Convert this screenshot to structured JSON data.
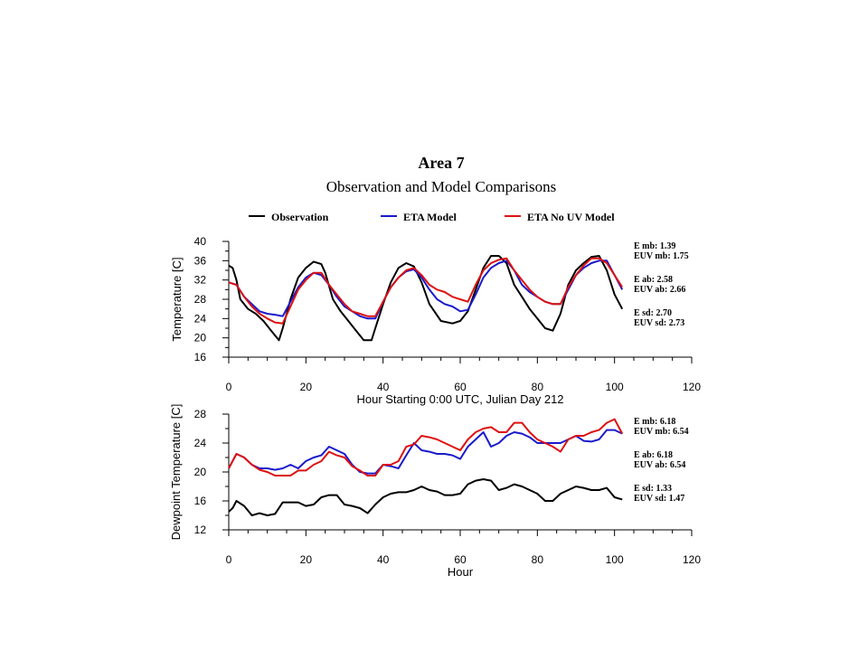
{
  "title": "Area 7",
  "subtitle": "Observation and Model Comparisons",
  "legend": [
    {
      "label": "Observation",
      "color": "#000000"
    },
    {
      "label": "ETA Model",
      "color": "#1a1acc"
    },
    {
      "label": "ETA No UV Model",
      "color": "#dd1111"
    }
  ],
  "chart_data": [
    {
      "type": "line",
      "title": "",
      "xlabel": "Hour Starting 0:00 UTC, Julian Day 212",
      "ylabel": "Temperature [C]",
      "xlim": [
        0,
        120
      ],
      "ylim": [
        16,
        40
      ],
      "xticks": [
        "0",
        "20",
        "40",
        "60",
        "80",
        "100",
        "120"
      ],
      "yticks": [
        "16",
        "20",
        "24",
        "28",
        "32",
        "36",
        "40"
      ],
      "series": [
        {
          "name": "Observation",
          "color": "#000000",
          "x": [
            0,
            1,
            2,
            3,
            5,
            7,
            9,
            11,
            13,
            14,
            16,
            18,
            20,
            22,
            24,
            25,
            27,
            29,
            31,
            33,
            35,
            37,
            38,
            40,
            42,
            44,
            46,
            48,
            50,
            52,
            55,
            58,
            60,
            62,
            64,
            66,
            68,
            70,
            72,
            74,
            76,
            78,
            80,
            82,
            84,
            86,
            88,
            90,
            92,
            94,
            96,
            98,
            100,
            102
          ],
          "y": [
            35,
            34.5,
            32,
            28,
            26,
            25,
            23.5,
            21.5,
            19.5,
            22,
            28,
            32.5,
            34.5,
            35.8,
            35.3,
            33.5,
            28,
            25.5,
            23.5,
            21.5,
            19.5,
            19.5,
            22,
            27,
            31.5,
            34.5,
            35.5,
            34.8,
            31.5,
            27,
            23.5,
            23,
            23.5,
            25.5,
            30,
            34.5,
            37,
            37,
            35.5,
            31,
            28.5,
            26,
            24,
            22,
            21.5,
            25,
            31,
            34,
            35.5,
            36.8,
            37,
            34,
            29,
            26
          ]
        },
        {
          "name": "ETA Model",
          "color": "#1a1acc",
          "x": [
            0,
            2,
            4,
            6,
            8,
            10,
            12,
            14,
            16,
            18,
            20,
            22,
            24,
            26,
            28,
            30,
            32,
            34,
            36,
            38,
            40,
            42,
            44,
            46,
            48,
            50,
            52,
            54,
            56,
            58,
            60,
            62,
            64,
            66,
            68,
            70,
            72,
            74,
            76,
            78,
            80,
            82,
            84,
            86,
            88,
            90,
            92,
            94,
            96,
            98,
            100,
            102
          ],
          "y": [
            31.5,
            31,
            28.5,
            27,
            25.5,
            25,
            24.8,
            24.5,
            27.5,
            30.5,
            32.5,
            33.5,
            33,
            31,
            28.5,
            26.5,
            25.5,
            24.5,
            24,
            24,
            27.5,
            30.5,
            32.5,
            33.8,
            34.2,
            32.5,
            30,
            28,
            27,
            26.5,
            25.5,
            25.8,
            29,
            32.5,
            34.5,
            35.5,
            36,
            34,
            31,
            29.5,
            28.5,
            27.5,
            27,
            27,
            30,
            33,
            34.5,
            35.5,
            36,
            36,
            33,
            30
          ]
        },
        {
          "name": "ETA No UV Model",
          "color": "#dd1111",
          "x": [
            0,
            2,
            4,
            6,
            8,
            10,
            12,
            14,
            16,
            18,
            20,
            22,
            24,
            26,
            28,
            30,
            32,
            34,
            36,
            38,
            40,
            42,
            44,
            46,
            48,
            50,
            52,
            54,
            56,
            58,
            60,
            62,
            64,
            66,
            68,
            70,
            72,
            74,
            76,
            78,
            80,
            82,
            84,
            86,
            88,
            90,
            92,
            94,
            96,
            98,
            100,
            102
          ],
          "y": [
            31.5,
            31,
            28.5,
            26.5,
            25,
            24,
            23.2,
            23,
            26.5,
            30,
            32,
            33.5,
            33.5,
            31,
            29,
            27,
            25.5,
            25,
            24.5,
            24.5,
            27.5,
            30.5,
            32.5,
            34,
            34.5,
            33,
            31,
            30,
            29.5,
            28.5,
            28,
            27.5,
            31,
            34,
            35.5,
            36.2,
            36.5,
            34,
            32,
            30,
            28.5,
            27.5,
            27,
            27,
            30.5,
            33,
            35,
            36.5,
            36.5,
            35.5,
            33,
            30.5
          ]
        }
      ],
      "stats": [
        "E mb: 1.39",
        "EUV mb: 1.75",
        "E ab: 2.58",
        "EUV ab: 2.66",
        "E sd: 2.70",
        "EUV sd: 2.73"
      ]
    },
    {
      "type": "line",
      "title": "",
      "xlabel": "Hour",
      "ylabel": "Dewpoint Temperature [C]",
      "xlim": [
        0,
        120
      ],
      "ylim": [
        12,
        28
      ],
      "xticks": [
        "0",
        "20",
        "40",
        "60",
        "80",
        "100",
        "120"
      ],
      "yticks": [
        "12",
        "16",
        "20",
        "24",
        "28"
      ],
      "series": [
        {
          "name": "Observation",
          "color": "#000000",
          "x": [
            0,
            1,
            2,
            4,
            6,
            8,
            10,
            12,
            14,
            16,
            18,
            20,
            22,
            24,
            26,
            28,
            30,
            32,
            34,
            36,
            38,
            40,
            42,
            44,
            46,
            48,
            50,
            52,
            54,
            56,
            58,
            60,
            62,
            64,
            66,
            68,
            70,
            72,
            74,
            76,
            78,
            80,
            82,
            84,
            86,
            88,
            90,
            92,
            94,
            96,
            98,
            100,
            102
          ],
          "y": [
            14.5,
            15,
            16,
            15.3,
            14,
            14.3,
            14,
            14.2,
            15.8,
            15.8,
            15.8,
            15.3,
            15.5,
            16.5,
            16.8,
            16.8,
            15.5,
            15.3,
            15,
            14.3,
            15.5,
            16.5,
            17,
            17.2,
            17.2,
            17.5,
            18,
            17.5,
            17.3,
            16.8,
            16.8,
            17,
            18.3,
            18.8,
            19,
            18.8,
            17.5,
            17.8,
            18.3,
            18,
            17.5,
            17,
            16,
            16,
            17,
            17.5,
            18,
            17.8,
            17.5,
            17.5,
            17.8,
            16.5,
            16.2
          ]
        },
        {
          "name": "ETA Model",
          "color": "#1a1acc",
          "x": [
            0,
            2,
            4,
            6,
            8,
            10,
            12,
            14,
            16,
            18,
            20,
            22,
            24,
            26,
            28,
            30,
            32,
            34,
            36,
            38,
            40,
            42,
            44,
            46,
            48,
            50,
            52,
            54,
            56,
            58,
            60,
            62,
            64,
            66,
            68,
            70,
            72,
            74,
            76,
            78,
            80,
            82,
            84,
            86,
            88,
            90,
            92,
            94,
            96,
            98,
            100,
            102
          ],
          "y": [
            20.5,
            22.5,
            22,
            21,
            20.5,
            20.5,
            20.3,
            20.5,
            21,
            20.5,
            21.5,
            22,
            22.3,
            23.5,
            23,
            22.5,
            21,
            20,
            19.8,
            19.8,
            21,
            20.8,
            20.5,
            22.3,
            24,
            23,
            22.8,
            22.5,
            22.5,
            22.3,
            21.8,
            23.5,
            24.5,
            25.5,
            23.5,
            24,
            25,
            25.5,
            25.3,
            24.8,
            24,
            24,
            24,
            24,
            24.5,
            25,
            24.3,
            24.2,
            24.5,
            25.8,
            25.8,
            25.3
          ]
        },
        {
          "name": "ETA No UV Model",
          "color": "#dd1111",
          "x": [
            0,
            2,
            4,
            6,
            8,
            10,
            12,
            14,
            16,
            18,
            20,
            22,
            24,
            26,
            28,
            30,
            32,
            34,
            36,
            38,
            40,
            42,
            44,
            46,
            48,
            50,
            52,
            54,
            56,
            58,
            60,
            62,
            64,
            66,
            68,
            70,
            72,
            74,
            76,
            78,
            80,
            82,
            84,
            86,
            88,
            90,
            92,
            94,
            96,
            98,
            100,
            102
          ],
          "y": [
            20.5,
            22.5,
            22,
            21,
            20.3,
            20,
            19.5,
            19.5,
            19.5,
            20.2,
            20.2,
            21,
            21.5,
            22.8,
            22.3,
            22,
            20.8,
            20.2,
            19.5,
            19.5,
            21,
            21,
            21.5,
            23.5,
            23.8,
            25,
            24.8,
            24.5,
            24,
            23.5,
            23,
            24.5,
            25.5,
            26,
            26.2,
            25.5,
            25.5,
            26.8,
            26.8,
            25.5,
            24.5,
            24,
            23.5,
            22.8,
            24.5,
            25,
            25,
            25.5,
            25.8,
            26.8,
            27.3,
            25.3
          ]
        }
      ],
      "stats": [
        "E mb: 6.18",
        "EUV mb: 6.54",
        "E ab: 6.18",
        "EUV ab: 6.54",
        "E sd: 1.33",
        "EUV sd: 1.47"
      ]
    }
  ]
}
